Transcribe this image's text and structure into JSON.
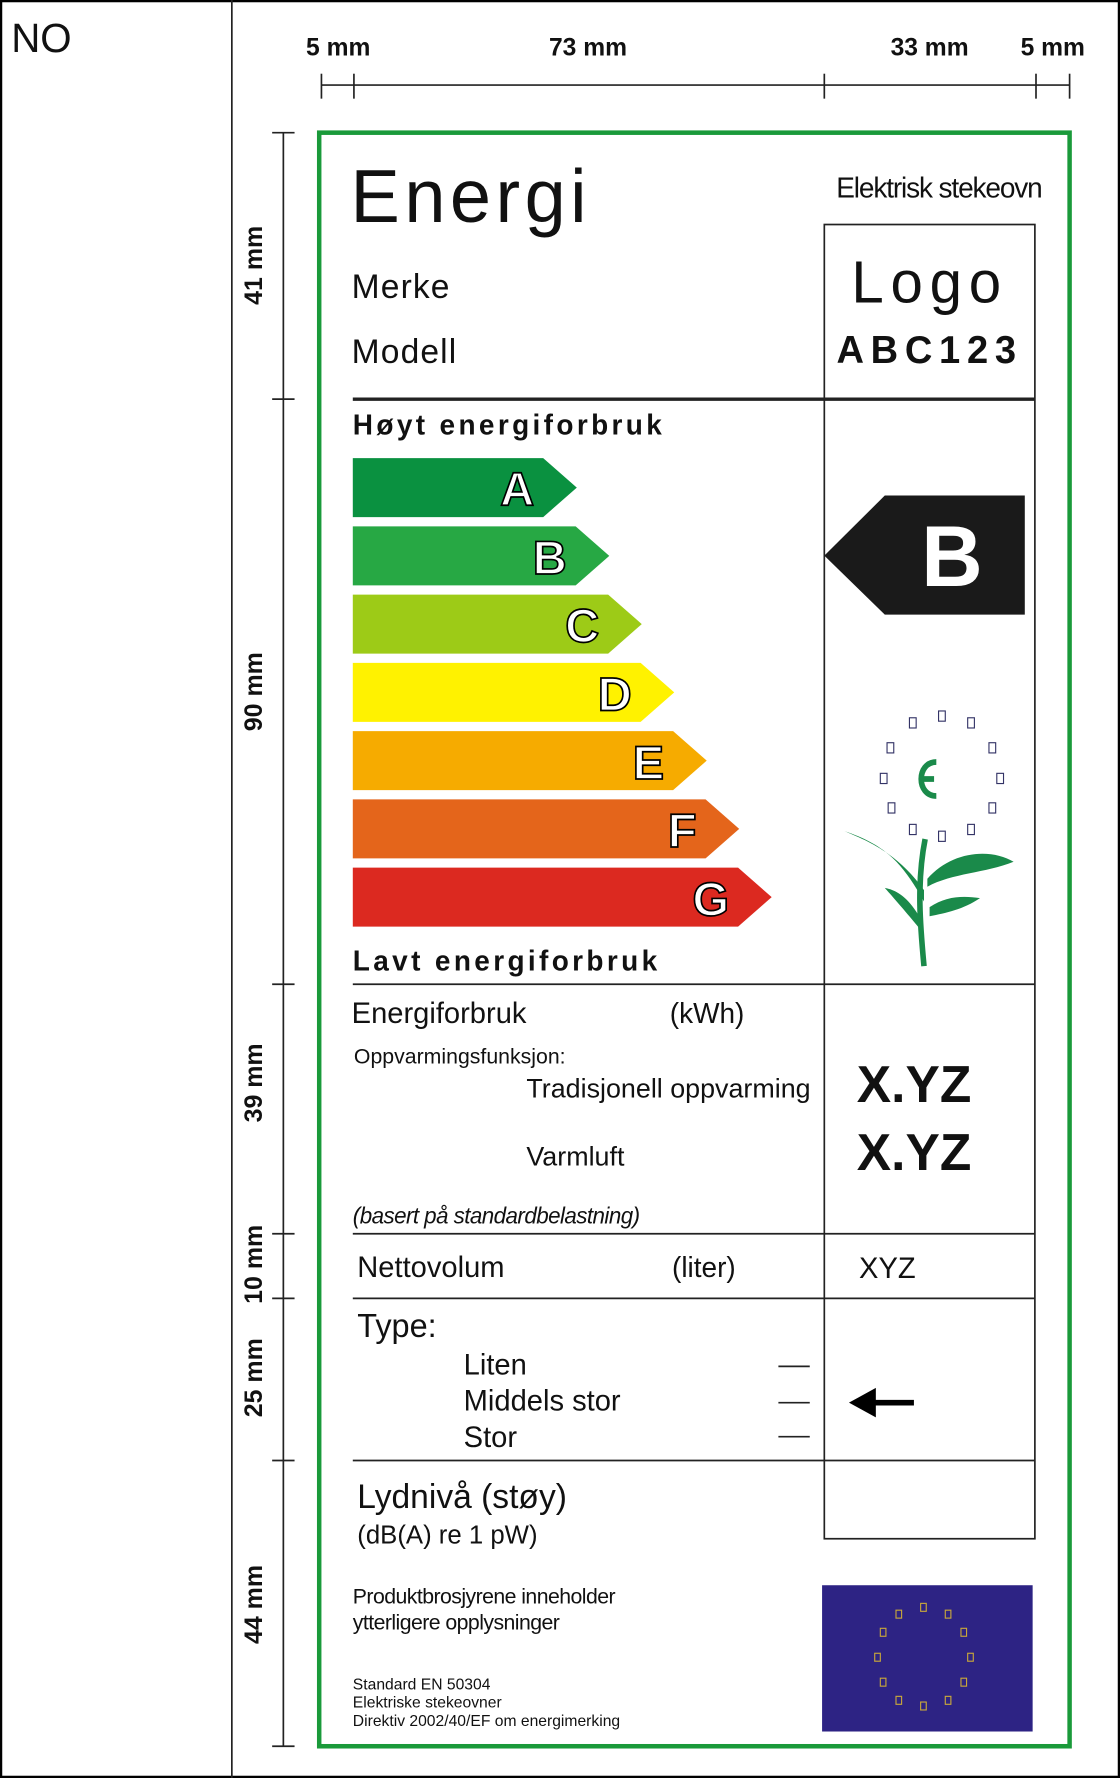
{
  "country": "NO",
  "dimensions": {
    "top": [
      "5 mm",
      "73 mm",
      "33 mm",
      "5 mm"
    ],
    "left": [
      "41 mm",
      "90 mm",
      "39 mm",
      "10 mm",
      "25 mm",
      "44 mm"
    ]
  },
  "label": {
    "title": "Energi",
    "appliance": "Elektrisk stekeovn",
    "brand": "Merke",
    "model": "Modell",
    "logo": "Logo",
    "model_code": "ABC123",
    "high": "Høyt energiforbruk",
    "classes": [
      "A",
      "B",
      "C",
      "D",
      "E",
      "F",
      "G"
    ],
    "rating": "B",
    "low": "Lavt energiforbruk",
    "energy": {
      "label": "Energiforbruk",
      "unit": "(kWh)",
      "heading": "Oppvarmingsfunksjon:",
      "rows": [
        [
          "Tradisjonell oppvarming",
          "X.YZ"
        ],
        [
          "Varmluft",
          "X.YZ"
        ]
      ],
      "note": "(basert på standardbelastning)"
    },
    "volume": {
      "label": "Nettovolum",
      "unit": "(liter)",
      "value": "XYZ"
    },
    "type": {
      "label": "Type:",
      "options": [
        "Liten",
        "Middels stor",
        "Stor"
      ]
    },
    "noise": {
      "label": "Lydnivå (støy)",
      "unit": "(dB(A) re 1 pW)"
    },
    "brochure": [
      "Produktbrosjyrene inneholder",
      "ytterligere opplysninger"
    ],
    "footer": [
      "Standard EN 50304",
      "Elektriske stekeovner",
      "Direktiv 2002/40/EF om energimerking"
    ]
  }
}
